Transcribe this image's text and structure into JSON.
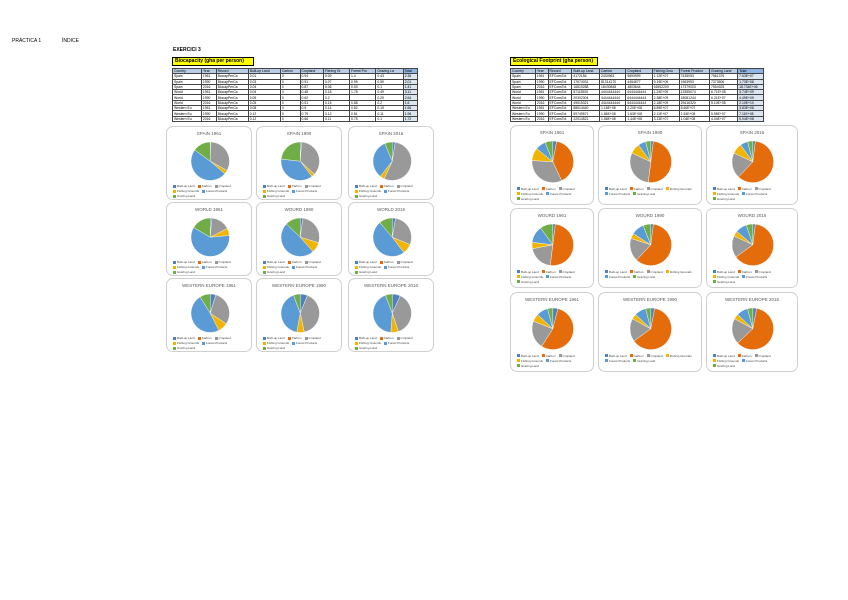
{
  "header": {
    "practica": "PRÁCTICA 1",
    "indice": "ÍNDICE",
    "exercise": "EXERCICI 3"
  },
  "colors": {
    "built_up": "#4f81bd",
    "carbon": "#e46c0a",
    "cropland": "#999999",
    "fishing": "#f1b400",
    "forest": "#5b9bd5",
    "grazing": "#70ad47"
  },
  "biocapacity": {
    "title": "Biocapacity (gha per person)",
    "headers": [
      "Country",
      "Year",
      "Record",
      "Built-up Land",
      "Carbon",
      "Cropland",
      "Fishing Gr",
      "Forest Pro",
      "Grazing La",
      "Total"
    ],
    "rows": [
      [
        "Spain",
        "1961",
        "BiocapPerCa",
        "0.01",
        "0",
        "0.94",
        "0.09",
        "1.4",
        "0.43",
        "2.36"
      ],
      [
        "Spain",
        "1990",
        "BiocapPerCa",
        "0.03",
        "0",
        "0.91",
        "0.07",
        "0.95",
        "0.59",
        "2.01"
      ],
      [
        "Spain",
        "2016",
        "BiocapPerCa",
        "0.04",
        "0",
        "0.87",
        "0.06",
        "0.53",
        "0.1",
        "1.41"
      ],
      [
        "World",
        "1961",
        "BiocapPerCa",
        "0.04",
        "0",
        "0.48",
        "0.18",
        "1.78",
        "0.49",
        "3.11"
      ],
      [
        "World",
        "1990",
        "BiocapPerCa",
        "0.05",
        "0",
        "0.62",
        "0.2",
        "",
        "0.29",
        "2.64"
      ],
      [
        "World",
        "2016",
        "BiocapPerCa",
        "0.05",
        "0",
        "0.51",
        "0.15",
        "0.88",
        "0.2",
        "1.6"
      ],
      [
        "Western Eu",
        "1961",
        "BiocapPerCa",
        "0.08",
        "0",
        "0.5",
        "0.14",
        "0.82",
        "0.15",
        "1.66"
      ],
      [
        "Western Eu",
        "1990",
        "BiocapPerCa",
        "0.12",
        "0",
        "0.79",
        "0.12",
        "0.81",
        "0.11",
        "1.96"
      ],
      [
        "Western Eu",
        "2016",
        "BiocapPerCa",
        "0.12",
        "0",
        "0.66",
        "0.11",
        "0.75",
        "0.1",
        "1.72"
      ]
    ]
  },
  "footprint": {
    "title": "Ecological Footprint (gha person)",
    "headers": [
      "Country",
      "Year",
      "Record",
      "Built-up Land",
      "Carbon",
      "Cropland",
      "Fishing Grou",
      "Forest Product",
      "Grazing Land",
      "Total"
    ],
    "rows": [
      [
        "Spain",
        "1961",
        "EFConsTot",
        "4172156",
        "2434963",
        "5893999",
        "1.12E+07",
        "7435053",
        "7561376",
        "7.63E+07"
      ],
      [
        "Spain",
        "1990",
        "EFConsTot",
        "17674031",
        "81314170",
        "4454677",
        "9.19E+06",
        "1563993",
        "7373506",
        "1.73E+08"
      ],
      [
        "Spain",
        "2016",
        "EFConsTot",
        "16819288",
        "18430848",
        "4803644",
        "16552200",
        "17379003",
        "7554925",
        "18.734E+06"
      ],
      [
        "World",
        "1961",
        "EFConsTot",
        "87115520",
        "4444444444",
        "6444444444",
        "1.24E+09",
        "13355074",
        "6.71E+08",
        "3.74E+09"
      ],
      [
        "World",
        "1990",
        "EFConsTot",
        "20302304",
        "4444444444",
        "6444444444",
        "2.38E+09",
        "18081244",
        "6.21E+07",
        "4.49E+09"
      ],
      [
        "World",
        "2016",
        "EFConsTot",
        "49515321",
        "4444444444",
        "6444444444",
        "2.18E+09",
        "29416320",
        "5.10E+08",
        "2.10E+10"
      ],
      [
        "Western Eu",
        "1961",
        "EFConsTot",
        "88514440",
        "1.16E+08",
        "2.20E+08",
        "6.89E+07",
        "5.60E+07",
        "",
        "3.83E+08"
      ],
      [
        "Western Eu",
        "1990",
        "EFConsTot",
        "59749571",
        "1.86E+08",
        "1.63E+08",
        "2.11E+07",
        "1.54E+08",
        "5.95E+07",
        "7.11E+08"
      ],
      [
        "Western Eu",
        "2016",
        "EFConsTot",
        "22014521",
        "1.56E+08",
        "1.44E+08",
        "3.13E+07",
        "1.04E+08",
        "4.04E+07",
        "5.04E+08"
      ]
    ]
  },
  "legend_labels": [
    "Built-up Land",
    "Carbon",
    "Cropland",
    "Fishing Grounds",
    "Forest Products",
    "Grazing Land"
  ],
  "bio_charts": [
    {
      "title": "SPAIN 1961",
      "values": [
        0.01,
        0,
        0.94,
        0.09,
        1.4,
        0.43
      ]
    },
    {
      "title": "SPAIN 1990",
      "values": [
        0.03,
        0,
        0.91,
        0.07,
        0.95,
        0.59
      ]
    },
    {
      "title": "SPAIN 2016",
      "values": [
        0.04,
        0,
        0.87,
        0.06,
        0.53,
        0.1
      ]
    },
    {
      "title": "WORLD 1961",
      "values": [
        0.04,
        0,
        0.48,
        0.18,
        1.78,
        0.49
      ]
    },
    {
      "title": "WOURD 1990",
      "values": [
        0.05,
        0,
        0.62,
        0.2,
        1.1,
        0.29
      ]
    },
    {
      "title": "WORLD 2016",
      "values": [
        0.05,
        0,
        0.51,
        0.15,
        0.88,
        0.2
      ]
    },
    {
      "title": "WESTERN EUROPE 1961",
      "values": [
        0.08,
        0,
        0.5,
        0.14,
        0.82,
        0.15
      ]
    },
    {
      "title": "WESTERN EUROPE 1990",
      "values": [
        0.12,
        0,
        0.79,
        0.12,
        0.81,
        0.11
      ]
    },
    {
      "title": "WESTERN EUROPE 2016",
      "values": [
        0.12,
        0,
        0.66,
        0.11,
        0.75,
        0.1
      ]
    }
  ],
  "fp_charts": [
    {
      "title": "SPAIN 1961",
      "values": [
        0.03,
        0.4,
        0.33,
        0.1,
        0.08,
        0.06
      ]
    },
    {
      "title": "SPAIN 1990",
      "values": [
        0.02,
        0.5,
        0.3,
        0.08,
        0.06,
        0.04
      ]
    },
    {
      "title": "SPAIN 2016",
      "values": [
        0.02,
        0.6,
        0.2,
        0.08,
        0.06,
        0.04
      ]
    },
    {
      "title": "WOURD 1961",
      "values": [
        0.02,
        0.5,
        0.2,
        0.05,
        0.13,
        0.1
      ]
    },
    {
      "title": "WOURD 1990",
      "values": [
        0.02,
        0.6,
        0.18,
        0.04,
        0.1,
        0.06
      ]
    },
    {
      "title": "WOURD 2016",
      "values": [
        0.02,
        0.63,
        0.17,
        0.04,
        0.09,
        0.05
      ]
    },
    {
      "title": "WESTERN EUROPE 1961",
      "values": [
        0.04,
        0.55,
        0.22,
        0.06,
        0.09,
        0.04
      ]
    },
    {
      "title": "WESTERN EUROPE 1990",
      "values": [
        0.03,
        0.62,
        0.18,
        0.04,
        0.09,
        0.04
      ]
    },
    {
      "title": "WESTERN EUROPE 2016",
      "values": [
        0.03,
        0.6,
        0.2,
        0.04,
        0.09,
        0.04
      ]
    }
  ]
}
